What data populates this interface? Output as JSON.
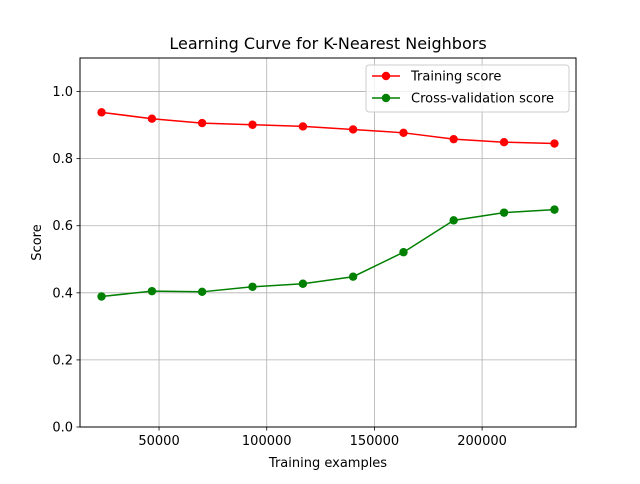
{
  "chart_data": {
    "type": "line",
    "title": "Learning Curve for K-Nearest Neighbors",
    "xlabel": "Training examples",
    "ylabel": "Score",
    "xlim": [
      13300,
      243600
    ],
    "ylim": [
      0.0,
      1.1
    ],
    "x_ticks": [
      50000,
      100000,
      150000,
      200000
    ],
    "x_tick_labels": [
      "50000",
      "100000",
      "150000",
      "200000"
    ],
    "y_ticks": [
      0.0,
      0.2,
      0.4,
      0.6,
      0.8,
      1.0
    ],
    "y_tick_labels": [
      "0.0",
      "0.2",
      "0.4",
      "0.6",
      "0.8",
      "1.0"
    ],
    "grid": true,
    "legend_position": "top-right",
    "x": [
      23300,
      46700,
      70000,
      93400,
      116800,
      140100,
      163500,
      186800,
      210200,
      233600
    ],
    "series": [
      {
        "name": "Training score",
        "color": "#ff0000",
        "marker": "circle",
        "values": [
          0.938,
          0.919,
          0.906,
          0.901,
          0.896,
          0.887,
          0.877,
          0.858,
          0.849,
          0.845
        ]
      },
      {
        "name": "Cross-validation score",
        "color": "#008000",
        "marker": "circle",
        "values": [
          0.389,
          0.405,
          0.403,
          0.418,
          0.427,
          0.448,
          0.521,
          0.616,
          0.639,
          0.648
        ]
      }
    ]
  }
}
